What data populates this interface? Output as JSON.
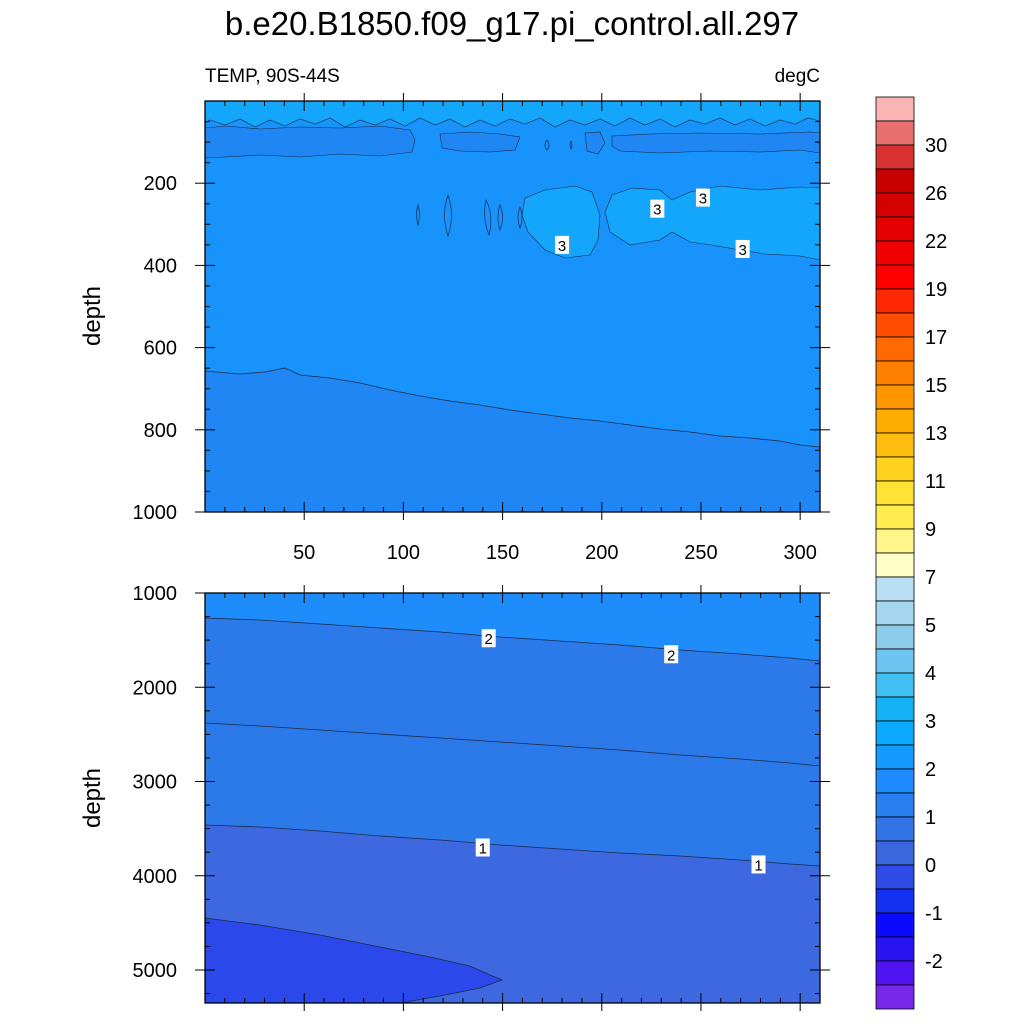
{
  "title": "b.e20.B1850.f09_g17.pi_control.all.297",
  "subtitle_left": "TEMP, 90S-44S",
  "subtitle_right": "degC",
  "colorbar": {
    "labels": [
      "30",
      "26",
      "22",
      "19",
      "17",
      "15",
      "13",
      "11",
      "9",
      "7",
      "5",
      "4",
      "3",
      "2",
      "1",
      "0",
      "-1",
      "-2"
    ],
    "colors": [
      "#f9b4b4",
      "#ea6f6f",
      "#d83232",
      "#c80000",
      "#d50000",
      "#e50000",
      "#f00000",
      "#ff0000",
      "#ff2800",
      "#ff4d00",
      "#ff6a00",
      "#ff7f00",
      "#ff9600",
      "#ffac00",
      "#ffbe0f",
      "#ffd21f",
      "#ffe234",
      "#ffec50",
      "#fff68a",
      "#ffffc8",
      "#b8e0f2",
      "#a5d7ee",
      "#8ccdec",
      "#6cc5f0",
      "#40bff5",
      "#14b1f5",
      "#0aa8ff",
      "#1499ff",
      "#1e8cff",
      "#2880f0",
      "#3274e6",
      "#3a68dc",
      "#2f4ce8",
      "#1430f0",
      "#0a0aff",
      "#2814f0",
      "#5014f0",
      "#7828e8"
    ]
  },
  "chart_data": [
    {
      "type": "contour",
      "panel": "upper",
      "xlabel": "",
      "ylabel": "depth",
      "xlim": [
        0,
        310
      ],
      "ylim": [
        1000,
        0
      ],
      "xticks": [
        "50",
        "100",
        "150",
        "200",
        "250",
        "300"
      ],
      "yticks": [
        "200",
        "400",
        "600",
        "800",
        "1000"
      ],
      "fill_bands": [
        {
          "range": "3-4",
          "color": "#14a6fb",
          "region": "surface layer 0-80 m and patch 190-380 m at x 160-310"
        },
        {
          "range": "2-3",
          "color": "#1993fc",
          "region": "bulk 80-800 m"
        },
        {
          "range": "1-2",
          "color": "#1f86f4",
          "region": "below boundary rising from ~660 m at x 0 to ~845 m at x 310, plus thin band ~100-140 m"
        }
      ],
      "contour_labels": [
        {
          "x": 180,
          "y": 350,
          "label": "3"
        },
        {
          "x": 228,
          "y": 262,
          "label": "3"
        },
        {
          "x": 251,
          "y": 235,
          "label": "3"
        },
        {
          "x": 271,
          "y": 360,
          "label": "3"
        }
      ]
    },
    {
      "type": "contour",
      "panel": "lower",
      "xlabel": "",
      "ylabel": "depth",
      "xlim": [
        0,
        310
      ],
      "ylim": [
        5350,
        1000
      ],
      "yticks": [
        "1000",
        "2000",
        "3000",
        "4000",
        "5000"
      ],
      "fill_bands": [
        {
          "range": "2-3",
          "color": "#1e8cfb",
          "region": "top 1000-1300 m"
        },
        {
          "range": "1-2",
          "color": "#2c7ae9",
          "region": "1300-3500 m"
        },
        {
          "range": "0-1",
          "color": "#3d68e0",
          "region": "3500 m to bottom"
        },
        {
          "range": "-1-0",
          "color": "#2b49ea",
          "region": "deep wedge at x 0-150 below ~4500 m"
        }
      ],
      "contour_labels": [
        {
          "x": 143,
          "y": 1480,
          "label": "2"
        },
        {
          "x": 235,
          "y": 1650,
          "label": "2"
        },
        {
          "x": 140,
          "y": 3700,
          "label": "1"
        },
        {
          "x": 279,
          "y": 3880,
          "label": "1"
        }
      ]
    }
  ]
}
